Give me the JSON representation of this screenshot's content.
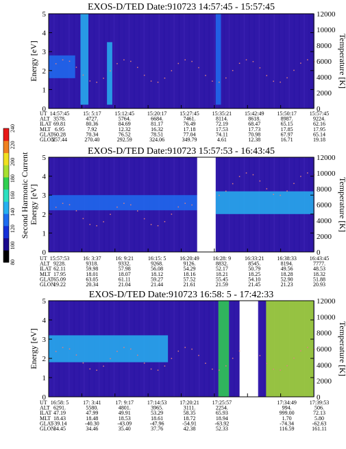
{
  "chart_data": [
    {
      "type": "heatmap",
      "title": "EXOS-D/TED   Date:910723   14:57:45 - 15:57:45",
      "ylabel": "Energy [eV]",
      "y2label": "Temperature [K]",
      "ylim": [
        0,
        5
      ],
      "yticks": [
        0,
        1,
        2,
        3,
        4,
        5
      ],
      "y2lim": [
        0,
        12000
      ],
      "y2ticks": [
        0,
        2000,
        4000,
        6000,
        8000,
        10000,
        12000
      ],
      "colorscale_range": [
        80,
        240
      ],
      "gap": null,
      "bands": [
        {
          "t0": 0.0,
          "t1": 0.1,
          "e0": 1.6,
          "e1": 2.8,
          "level": 120
        },
        {
          "t0": 0.12,
          "t1": 0.15,
          "e0": 0.2,
          "e1": 5.0,
          "level": 150
        },
        {
          "t0": 0.22,
          "t1": 0.24,
          "e0": 0.2,
          "e1": 3.5,
          "level": 140
        },
        {
          "t0": 0.63,
          "t1": 0.65,
          "e0": 0.2,
          "e1": 5.0,
          "level": 135
        }
      ],
      "ephemeris": {
        "labels": [
          "UT",
          "ALT",
          "ILAT",
          "MLT",
          "GLAT",
          "GLON"
        ],
        "columns": [
          [
            "14:57:45",
            "3578.",
            "69.81",
            "6.95",
            "60.28",
            "257.44"
          ],
          [
            "15: 5:17",
            "4727.",
            "80.36",
            "7.92",
            "70.34",
            "270.40"
          ],
          [
            "15:12:45",
            "5764.",
            "84.69",
            "12.32",
            "76.52",
            "292.59"
          ],
          [
            "15:20:17",
            "6684.",
            "81.17",
            "16.32",
            "78.51",
            "324.06"
          ],
          [
            "15:27:45",
            "7461.",
            "76.49",
            "17.18",
            "77.04",
            "349.79"
          ],
          [
            "15:35:21",
            "8114.",
            "72.19",
            "17.53",
            "74.11",
            "4.61"
          ],
          [
            "15:42:49",
            "8618.",
            "68.47",
            "17.73",
            "70.98",
            "12.38"
          ],
          [
            "15:50:17",
            "8987.",
            "65.15",
            "17.85",
            "67.97",
            "16.71"
          ],
          [
            "15:57:45",
            "9224.",
            "62.16",
            "17.95",
            "65.14",
            "19.18"
          ]
        ]
      }
    },
    {
      "type": "heatmap",
      "title": "EXOS-D/TED   Date:910723   15:57:53 - 16:43:45",
      "ylabel": "Energy [eV]",
      "y2label": "Temperature [K]",
      "ylim": [
        0,
        5
      ],
      "yticks": [
        0,
        1,
        2,
        3,
        4,
        5
      ],
      "y2lim": [
        0,
        12000
      ],
      "y2ticks": [
        0,
        2000,
        4000,
        6000,
        8000,
        10000,
        12000
      ],
      "gap": [
        0.56,
        0.63
      ],
      "bands": [
        {
          "t0": 0.0,
          "t1": 0.56,
          "e0": 2.2,
          "e1": 3.0,
          "level": 125
        },
        {
          "t0": 0.63,
          "t1": 1.0,
          "e0": 2.0,
          "e1": 3.2,
          "level": 140
        }
      ],
      "colorbar": {
        "label": "Second Harmonic Current",
        "min": 80,
        "max": 240,
        "ticks": [
          80,
          100,
          120,
          140,
          160,
          180,
          200,
          220,
          240
        ]
      },
      "ephemeris": {
        "labels": [
          "UT",
          "ALT",
          "ILAT",
          "MLT",
          "GLAT",
          "GLON"
        ],
        "columns": [
          [
            "15:57:53",
            "9228.",
            "62.11",
            "17.95",
            "65.09",
            "19.22"
          ],
          [
            "16: 3:37",
            "9318.",
            "59.98",
            "18.01",
            "63.05",
            "20.34"
          ],
          [
            "16: 9:21",
            "9332.",
            "57.98",
            "18.07",
            "61.11",
            "21.04"
          ],
          [
            "16:15: 5",
            "9268.",
            "56.08",
            "18.12",
            "59.27",
            "21.44"
          ],
          [
            "16:20:49",
            "9126.",
            "54.29",
            "18.16",
            "57.52",
            "21.61"
          ],
          [
            "16:28: 9",
            "8832.",
            "52.17",
            "18.21",
            "55.45",
            "21.59"
          ],
          [
            "16:33:21",
            "8545.",
            "50.79",
            "18.25",
            "54.10",
            "21.45"
          ],
          [
            "16:38:33",
            "8194.",
            "49.56",
            "18.28",
            "52.90",
            "21.23"
          ],
          [
            "16:43:45",
            "7777.",
            "48.53",
            "18.32",
            "51.88",
            "20.93"
          ]
        ]
      }
    },
    {
      "type": "heatmap",
      "title": "EXOS-D/TED   Date:910723   16:58: 5 - 17:42:33",
      "ylabel": "Energy [eV]",
      "y2label": "Temperature [K]",
      "ylim": [
        0,
        5
      ],
      "yticks": [
        0,
        1,
        2,
        3,
        4,
        5
      ],
      "y2lim": [
        0,
        12000
      ],
      "y2ticks": [
        0,
        2000,
        4000,
        6000,
        8000,
        10000,
        12000
      ],
      "colorscale_range": [
        80,
        240
      ],
      "gap": [
        0.72,
        0.79
      ],
      "bands": [
        {
          "t0": 0.0,
          "t1": 0.45,
          "e0": 1.8,
          "e1": 3.2,
          "level": 150
        },
        {
          "t0": 0.64,
          "t1": 0.68,
          "e0": 0.0,
          "e1": 5.0,
          "level": 170
        },
        {
          "t0": 0.82,
          "t1": 1.0,
          "e0": 0.0,
          "e1": 5.0,
          "level": 185
        }
      ],
      "ephemeris": {
        "labels": [
          "UT",
          "ALT",
          "ILAT",
          "MLT",
          "GLAT",
          "GLON"
        ],
        "columns": [
          [
            "16:58: 5",
            "6291.",
            "47.19",
            "18.43",
            "-39.14",
            "34.45"
          ],
          [
            "17: 3:41",
            "5580.",
            "47.99",
            "18.48",
            "-40.30",
            "34.46"
          ],
          [
            "17: 9:17",
            "4801.",
            "49.91",
            "18.53",
            "-43.09",
            "35.40"
          ],
          [
            "17:14:53",
            "3965.",
            "53.29",
            "18.61",
            "-47.96",
            "37.76"
          ],
          [
            "17:20:21",
            "3111.",
            "58.35",
            "18.72",
            "-54.91",
            "42.38"
          ],
          [
            "17:25:57",
            "2254.",
            "65.93",
            "18.94",
            "-63.92",
            "52.33"
          ],
          [
            "",
            "",
            "",
            "",
            "",
            ""
          ],
          [
            "17:34:49",
            "994.",
            "999.00",
            "1.70",
            "-74.34",
            "116.59"
          ],
          [
            "17:39:53",
            "506.",
            "72.13",
            "5.80",
            "-62.63",
            "161.11"
          ]
        ]
      }
    }
  ]
}
